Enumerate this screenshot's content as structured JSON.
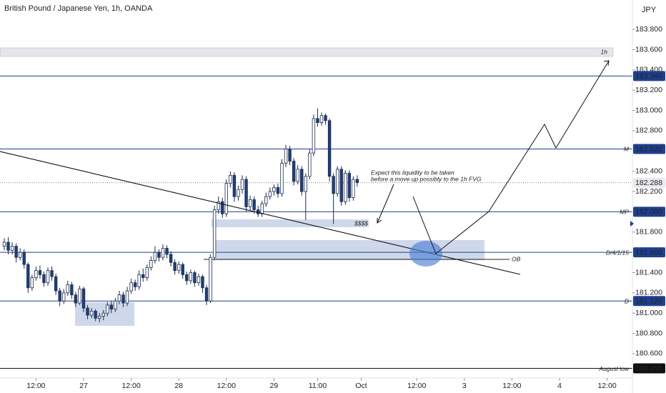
{
  "chart_data": {
    "type": "candlestick",
    "title": "British Pound / Japanese Yen, 1h, OANDA",
    "currency": "JPY",
    "xlim": [
      -21.08,
      138.38
    ],
    "ylim": [
      180.36,
      184.09
    ],
    "xticks": [
      {
        "value": -12,
        "label": "12:00"
      },
      {
        "value": 0,
        "label": "27"
      },
      {
        "value": 12,
        "label": "12:00"
      },
      {
        "value": 24,
        "label": "28"
      },
      {
        "value": 36,
        "label": "12:00"
      },
      {
        "value": 48,
        "label": "29"
      },
      {
        "value": 59,
        "label": "11:00"
      },
      {
        "value": 70,
        "label": "Oct"
      },
      {
        "value": 84,
        "label": "12:00"
      },
      {
        "value": 96,
        "label": "3"
      },
      {
        "value": 108,
        "label": "12:00"
      },
      {
        "value": 120,
        "label": "4"
      },
      {
        "value": 132,
        "label": "12:00"
      }
    ],
    "yticks": [
      {
        "value": 183.8,
        "label": "183.800"
      },
      {
        "value": 183.6,
        "label": "183.600"
      },
      {
        "value": 183.4,
        "label": "183.400"
      },
      {
        "value": 183.2,
        "label": "183.200"
      },
      {
        "value": 183.0,
        "label": "183.000"
      },
      {
        "value": 182.8,
        "label": "182.800"
      },
      {
        "value": 182.4,
        "label": "182.400"
      },
      {
        "value": 182.2,
        "label": "182.200"
      },
      {
        "value": 181.8,
        "label": "181.800"
      },
      {
        "value": 181.4,
        "label": "181.400"
      },
      {
        "value": 181.2,
        "label": "181.200"
      },
      {
        "value": 181.0,
        "label": "181.000"
      },
      {
        "value": 180.8,
        "label": "180.800"
      },
      {
        "value": 180.6,
        "label": "180.600"
      }
    ],
    "x": [
      -20,
      -19,
      -18,
      -17,
      -16,
      -15,
      -14,
      -13,
      -12,
      -11,
      -10,
      -9,
      -8,
      -7,
      -6,
      -5,
      -4,
      -3,
      -2,
      -1,
      0,
      1,
      2,
      3,
      4,
      5,
      6,
      7,
      8,
      9,
      10,
      11,
      12,
      13,
      14,
      15,
      16,
      17,
      18,
      19,
      20,
      21,
      22,
      23,
      24,
      25,
      26,
      27,
      28,
      29,
      30,
      31,
      32,
      33,
      34,
      35,
      36,
      37,
      38,
      39,
      40,
      41,
      42,
      43,
      44,
      45,
      46,
      47,
      48,
      49,
      50,
      51,
      52,
      53,
      54,
      55,
      56,
      57,
      58,
      59,
      60,
      61,
      62,
      63,
      64,
      65,
      66,
      67,
      68,
      69
    ],
    "open": [
      181.66,
      181.7,
      181.62,
      181.66,
      181.55,
      181.6,
      181.48,
      181.25,
      181.35,
      181.42,
      181.38,
      181.3,
      181.42,
      181.36,
      181.22,
      181.12,
      181.2,
      181.28,
      181.18,
      181.1,
      181.24,
      181.05,
      180.98,
      181.02,
      180.95,
      180.97,
      181.0,
      181.08,
      181.04,
      181.12,
      181.18,
      181.1,
      181.22,
      181.3,
      181.26,
      181.38,
      181.35,
      181.45,
      181.52,
      181.6,
      181.55,
      181.64,
      181.58,
      181.5,
      181.42,
      181.48,
      181.38,
      181.32,
      181.4,
      181.3,
      181.36,
      181.25,
      181.12,
      181.55,
      182.02,
      182.1,
      181.98,
      182.28,
      182.36,
      182.15,
      182.22,
      182.32,
      182.05,
      182.12,
      182.02,
      181.98,
      182.08,
      182.15,
      182.2,
      182.24,
      182.18,
      182.48,
      182.62,
      182.5,
      182.3,
      182.42,
      182.2,
      182.35,
      182.58,
      182.92,
      182.88,
      182.95,
      182.9,
      182.35,
      182.18,
      182.42,
      182.1,
      182.38,
      182.14,
      182.32
    ],
    "high": [
      181.74,
      181.75,
      181.7,
      181.69,
      181.64,
      181.63,
      181.5,
      181.38,
      181.46,
      181.47,
      181.41,
      181.45,
      181.46,
      181.39,
      181.25,
      181.24,
      181.32,
      181.31,
      181.21,
      181.27,
      181.26,
      181.08,
      181.05,
      181.04,
      181.0,
      181.03,
      181.11,
      181.12,
      181.15,
      181.22,
      181.21,
      181.26,
      181.34,
      181.33,
      181.42,
      181.44,
      181.48,
      181.56,
      181.66,
      181.63,
      181.68,
      181.67,
      181.61,
      181.53,
      181.51,
      181.5,
      181.41,
      181.43,
      181.42,
      181.39,
      181.38,
      181.28,
      181.58,
      182.06,
      182.15,
      182.14,
      182.32,
      182.4,
      182.39,
      182.26,
      182.36,
      182.35,
      182.16,
      182.15,
      182.06,
      182.11,
      182.19,
      182.24,
      182.27,
      182.28,
      182.52,
      182.66,
      182.65,
      182.53,
      182.46,
      182.45,
      182.38,
      182.62,
      182.96,
      183.02,
      182.98,
      182.97,
      182.92,
      182.38,
      182.45,
      182.45,
      182.41,
      182.41,
      182.35,
      182.36
    ],
    "low": [
      181.62,
      181.58,
      181.58,
      181.5,
      181.52,
      181.44,
      181.2,
      181.22,
      181.32,
      181.34,
      181.26,
      181.27,
      181.32,
      181.18,
      181.07,
      181.09,
      181.17,
      181.14,
      181.06,
      181.08,
      181.01,
      180.94,
      180.95,
      180.92,
      180.91,
      180.93,
      180.97,
      181.0,
      181.01,
      181.09,
      181.06,
      181.07,
      181.19,
      181.22,
      181.23,
      181.31,
      181.32,
      181.42,
      181.49,
      181.51,
      181.52,
      181.54,
      181.46,
      181.38,
      181.39,
      181.34,
      181.28,
      181.29,
      181.26,
      181.27,
      181.2,
      181.08,
      181.1,
      181.52,
      181.98,
      181.94,
      181.95,
      182.24,
      182.1,
      182.11,
      182.18,
      182.0,
      182.01,
      181.98,
      181.95,
      181.95,
      182.05,
      182.12,
      182.16,
      182.14,
      182.15,
      182.44,
      182.46,
      182.26,
      182.27,
      182.16,
      181.92,
      182.32,
      182.55,
      182.84,
      182.85,
      182.86,
      182.3,
      181.88,
      182.15,
      182.06,
      182.07,
      182.1,
      182.11,
      182.25
    ],
    "close": [
      181.7,
      181.62,
      181.66,
      181.55,
      181.6,
      181.48,
      181.25,
      181.35,
      181.42,
      181.38,
      181.3,
      181.42,
      181.36,
      181.22,
      181.12,
      181.2,
      181.28,
      181.18,
      181.1,
      181.24,
      181.05,
      180.98,
      181.02,
      180.95,
      180.97,
      181.0,
      181.08,
      181.04,
      181.12,
      181.18,
      181.1,
      181.22,
      181.3,
      181.26,
      181.38,
      181.35,
      181.45,
      181.52,
      181.6,
      181.55,
      181.64,
      181.58,
      181.5,
      181.42,
      181.48,
      181.38,
      181.32,
      181.4,
      181.3,
      181.36,
      181.25,
      181.12,
      181.55,
      182.02,
      182.1,
      181.98,
      182.28,
      182.36,
      182.15,
      182.22,
      182.32,
      182.05,
      182.12,
      182.02,
      181.98,
      182.08,
      182.15,
      182.2,
      182.24,
      182.18,
      182.48,
      182.62,
      182.5,
      182.3,
      182.42,
      182.2,
      182.35,
      182.58,
      182.92,
      182.88,
      182.95,
      182.9,
      182.35,
      182.18,
      182.42,
      182.1,
      182.38,
      182.14,
      182.32,
      182.288
    ],
    "up_color": "#ffffff",
    "down_color": "#1f3f7a",
    "line_color": "#1c2b4d",
    "levels": [
      {
        "price": {
          "value": 183.34,
          "label": "183.340"
        },
        "color": "#1f3f8f"
      },
      {
        "price": {
          "value": 182.62,
          "label": "182.620"
        },
        "tag": "M",
        "color": "#1f3f8f"
      },
      {
        "price": {
          "value": 182.0,
          "label": "182.000"
        },
        "tag": "MP",
        "color": "#1f3f8f"
      },
      {
        "price": {
          "value": 181.6,
          "label": "181.600"
        },
        "tag": "D/4/1/15",
        "color": "#1f3f8f"
      },
      {
        "price": {
          "value": 181.12,
          "label": "181.120"
        },
        "tag": "D",
        "color": "#1f3f8f"
      },
      {
        "price": {
          "value": 180.455,
          "label": "180.455"
        },
        "tag": "August low",
        "color": "#111111"
      }
    ],
    "last_price": 182.288,
    "annotations": {
      "fvg": "1h",
      "liquidity": "$$$$",
      "ob": "OB",
      "note": [
        "Expect this liquidity to be taken",
        "before a move up possibly to the 1h FVG"
      ]
    }
  }
}
